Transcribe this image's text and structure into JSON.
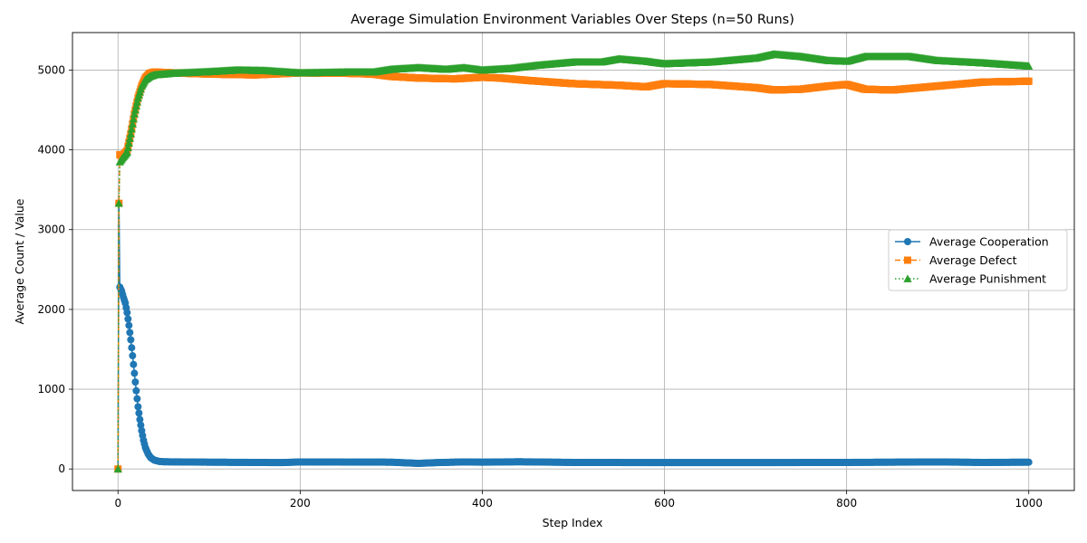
{
  "chart_data": {
    "type": "line",
    "title": "Average Simulation Environment Variables Over Steps (n=50 Runs)",
    "xlabel": "Step Index",
    "ylabel": "Average Count / Value",
    "xlim": [
      -50,
      1050
    ],
    "ylim": [
      -270,
      5470
    ],
    "x_ticks": [
      0,
      200,
      400,
      600,
      800,
      1000
    ],
    "y_ticks": [
      0,
      1000,
      2000,
      3000,
      4000,
      5000
    ],
    "grid": true,
    "legend_position": "center-right",
    "x_step": 1,
    "x_start": 0,
    "x_end": 1000,
    "series": [
      {
        "name": "Average Cooperation",
        "color": "#1f77b4",
        "marker": "circle",
        "linestyle": "solid",
        "key_points": [
          [
            0,
            0
          ],
          [
            1,
            3330
          ],
          [
            2,
            2280
          ],
          [
            4,
            2230
          ],
          [
            6,
            2150
          ],
          [
            8,
            2080
          ],
          [
            10,
            1960
          ],
          [
            12,
            1800
          ],
          [
            14,
            1620
          ],
          [
            16,
            1420
          ],
          [
            18,
            1200
          ],
          [
            20,
            980
          ],
          [
            22,
            780
          ],
          [
            24,
            620
          ],
          [
            26,
            480
          ],
          [
            28,
            360
          ],
          [
            30,
            270
          ],
          [
            33,
            190
          ],
          [
            36,
            140
          ],
          [
            40,
            110
          ],
          [
            45,
            95
          ],
          [
            50,
            90
          ],
          [
            70,
            88
          ],
          [
            100,
            85
          ],
          [
            180,
            80
          ],
          [
            200,
            88
          ],
          [
            300,
            85
          ],
          [
            330,
            70
          ],
          [
            350,
            80
          ],
          [
            380,
            88
          ],
          [
            400,
            85
          ],
          [
            440,
            90
          ],
          [
            500,
            82
          ],
          [
            600,
            80
          ],
          [
            700,
            80
          ],
          [
            800,
            82
          ],
          [
            850,
            85
          ],
          [
            900,
            88
          ],
          [
            950,
            82
          ],
          [
            1000,
            85
          ]
        ]
      },
      {
        "name": "Average Defect",
        "color": "#ff7f0e",
        "marker": "square",
        "linestyle": "dashed",
        "key_points": [
          [
            0,
            0
          ],
          [
            1,
            3330
          ],
          [
            2,
            3940
          ],
          [
            5,
            3920
          ],
          [
            10,
            3990
          ],
          [
            14,
            4200
          ],
          [
            18,
            4450
          ],
          [
            22,
            4650
          ],
          [
            26,
            4800
          ],
          [
            30,
            4900
          ],
          [
            35,
            4960
          ],
          [
            40,
            4975
          ],
          [
            60,
            4965
          ],
          [
            100,
            4950
          ],
          [
            150,
            4940
          ],
          [
            200,
            4965
          ],
          [
            250,
            4960
          ],
          [
            280,
            4950
          ],
          [
            300,
            4920
          ],
          [
            330,
            4900
          ],
          [
            370,
            4890
          ],
          [
            400,
            4910
          ],
          [
            420,
            4900
          ],
          [
            450,
            4870
          ],
          [
            500,
            4830
          ],
          [
            550,
            4810
          ],
          [
            580,
            4790
          ],
          [
            600,
            4830
          ],
          [
            650,
            4820
          ],
          [
            700,
            4780
          ],
          [
            720,
            4750
          ],
          [
            750,
            4760
          ],
          [
            780,
            4800
          ],
          [
            800,
            4820
          ],
          [
            820,
            4760
          ],
          [
            850,
            4750
          ],
          [
            870,
            4770
          ],
          [
            900,
            4800
          ],
          [
            950,
            4850
          ],
          [
            1000,
            4860
          ]
        ]
      },
      {
        "name": "Average Punishment",
        "color": "#2ca02c",
        "marker": "triangle",
        "linestyle": "dotted",
        "key_points": [
          [
            0,
            0
          ],
          [
            1,
            3330
          ],
          [
            2,
            3850
          ],
          [
            5,
            3900
          ],
          [
            10,
            3970
          ],
          [
            14,
            4200
          ],
          [
            18,
            4450
          ],
          [
            22,
            4650
          ],
          [
            26,
            4800
          ],
          [
            30,
            4880
          ],
          [
            35,
            4920
          ],
          [
            40,
            4940
          ],
          [
            60,
            4960
          ],
          [
            100,
            4980
          ],
          [
            130,
            5000
          ],
          [
            160,
            4995
          ],
          [
            200,
            4965
          ],
          [
            250,
            4975
          ],
          [
            280,
            4975
          ],
          [
            300,
            5010
          ],
          [
            330,
            5030
          ],
          [
            360,
            5010
          ],
          [
            380,
            5030
          ],
          [
            400,
            5000
          ],
          [
            430,
            5020
          ],
          [
            460,
            5060
          ],
          [
            500,
            5100
          ],
          [
            530,
            5100
          ],
          [
            550,
            5140
          ],
          [
            580,
            5110
          ],
          [
            600,
            5080
          ],
          [
            650,
            5100
          ],
          [
            700,
            5150
          ],
          [
            720,
            5200
          ],
          [
            750,
            5170
          ],
          [
            780,
            5120
          ],
          [
            800,
            5110
          ],
          [
            820,
            5170
          ],
          [
            850,
            5170
          ],
          [
            870,
            5170
          ],
          [
            900,
            5120
          ],
          [
            950,
            5090
          ],
          [
            1000,
            5050
          ]
        ]
      }
    ]
  }
}
